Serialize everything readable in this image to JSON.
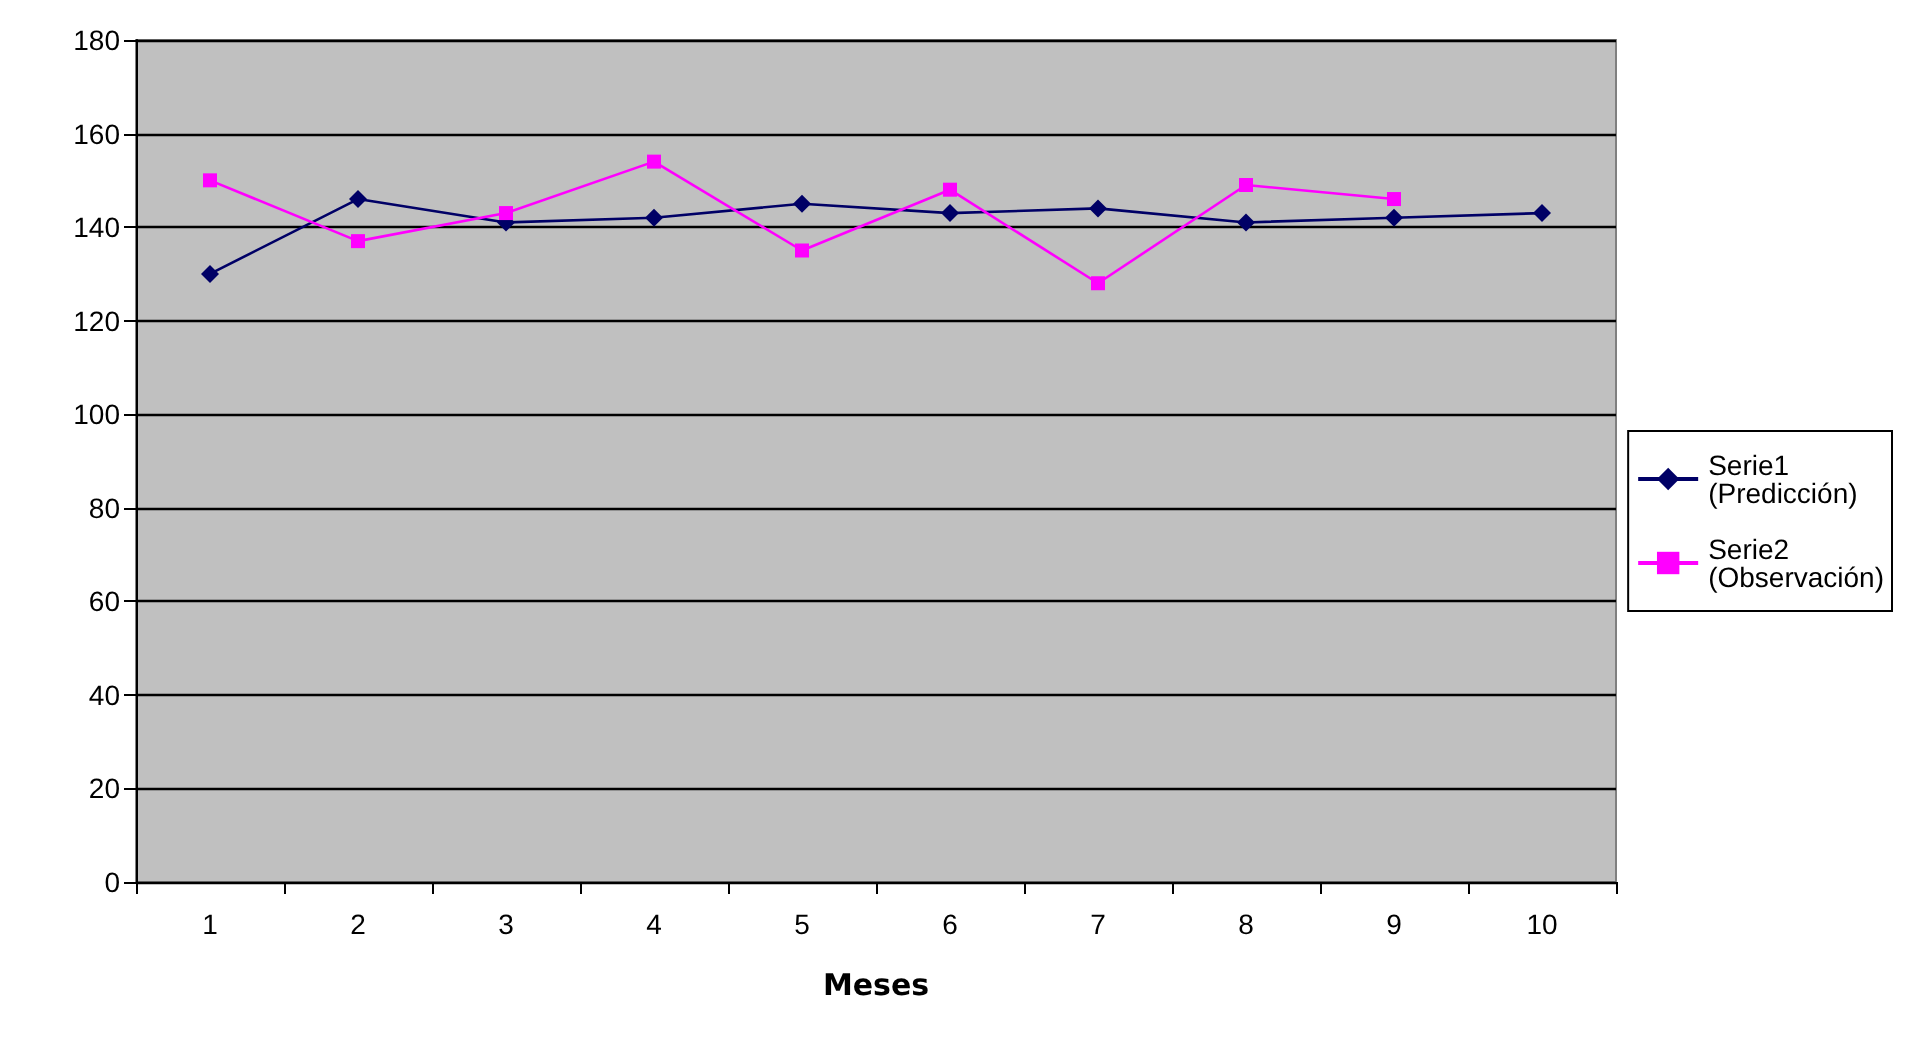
{
  "chart_data": {
    "type": "line",
    "xlabel": "Meses",
    "categories": [
      "1",
      "2",
      "3",
      "4",
      "5",
      "6",
      "7",
      "8",
      "9",
      "10"
    ],
    "series": [
      {
        "name": "Serie1 (Predicción)",
        "color": "#000066",
        "marker": "diamond",
        "values": [
          130,
          146,
          141,
          142,
          145,
          143,
          144,
          141,
          142,
          143
        ]
      },
      {
        "name": "Serie2 (Observación)",
        "color": "#ff00ff",
        "marker": "square",
        "values": [
          150,
          137,
          143,
          154,
          135,
          148,
          128,
          149,
          146,
          null
        ]
      }
    ],
    "ylim": [
      0,
      180
    ],
    "yticks": [
      0,
      20,
      40,
      60,
      80,
      100,
      120,
      140,
      160,
      180
    ],
    "grid": "y",
    "legend": "right"
  }
}
